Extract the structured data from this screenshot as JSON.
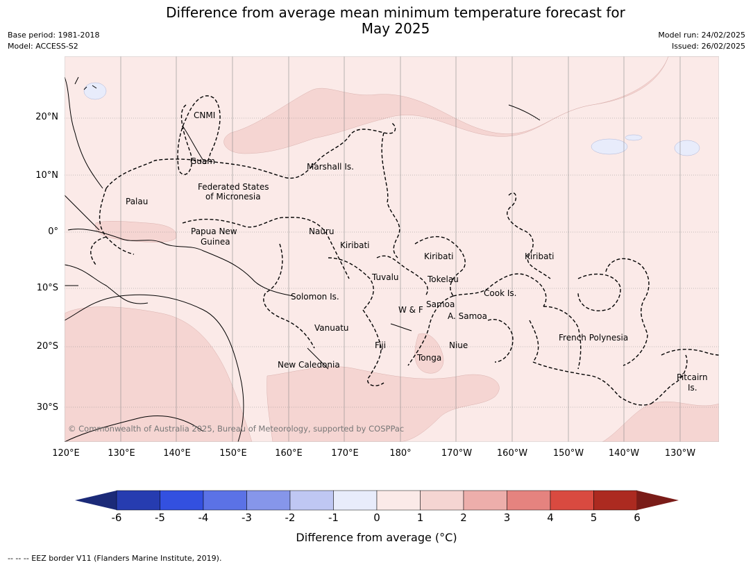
{
  "header": {
    "title_line1": "Difference from average mean minimum temperature forecast for",
    "title_line2": "May 2025",
    "base_period": "Base period: 1981-2018",
    "model": "Model: ACCESS-S2",
    "model_run": "Model run: 24/02/2025",
    "issued": "Issued: 26/02/2025"
  },
  "map": {
    "lat_ticks": [
      "20°N",
      "10°N",
      "0°",
      "10°S",
      "20°S",
      "30°S"
    ],
    "lon_ticks": [
      "120°E",
      "130°E",
      "140°E",
      "150°E",
      "160°E",
      "170°E",
      "180°",
      "170°W",
      "160°W",
      "150°W",
      "140°W",
      "130°W"
    ],
    "region_labels": {
      "cnmi": "CNMI",
      "guam": "Guam",
      "marshall": "Marshall Is.",
      "fsm_1": "Federated States",
      "fsm_2": "of Micronesia",
      "palau": "Palau",
      "png_1": "Papua New",
      "png_2": "Guinea",
      "nauru": "Nauru",
      "kiribati_w": "Kiribati",
      "kiribati_c": "Kiribati",
      "kiribati_e": "Kiribati",
      "tuvalu": "Tuvalu",
      "tokelau": "Tokelau",
      "cook": "Cook Is.",
      "solomon": "Solomon Is.",
      "wf": "W & F",
      "samoa": "Samoa",
      "asamoa": "A. Samoa",
      "vanuatu": "Vanuatu",
      "fiji": "Fiji",
      "niue": "Niue",
      "tonga": "Tonga",
      "frpoly": "French Polynesia",
      "newcal": "New Caledonia",
      "pitcairn_1": "Pitcairn",
      "pitcairn_2": "Is."
    },
    "copyright": "© Commonwealth of Australia 2025, Bureau of Meteorology, supported by COSPPac",
    "colors": {
      "ocean_0_1": "#fbeae8",
      "band_1_2": "#f5d5d2",
      "band_m1_0": "#e8ecfb",
      "land_outline": "#000000"
    }
  },
  "colorbar": {
    "labels": [
      "-6",
      "-5",
      "-4",
      "-3",
      "-2",
      "-1",
      "0",
      "1",
      "2",
      "3",
      "4",
      "5",
      "6"
    ],
    "colors": [
      "#263cb0",
      "#3350e0",
      "#5b72e6",
      "#8696ea",
      "#bfc7f3",
      "#e8ecfb",
      "#fbeae8",
      "#f5d5d2",
      "#edaeab",
      "#e5837f",
      "#d94a40",
      "#ac2a20"
    ],
    "under_color": "#1b2a78",
    "over_color": "#7a1c18",
    "title": "Difference from average (°C)"
  },
  "footer": {
    "eez_note": "-- -- -- EEZ border V11 (Flanders Marine Institute, 2019)."
  }
}
